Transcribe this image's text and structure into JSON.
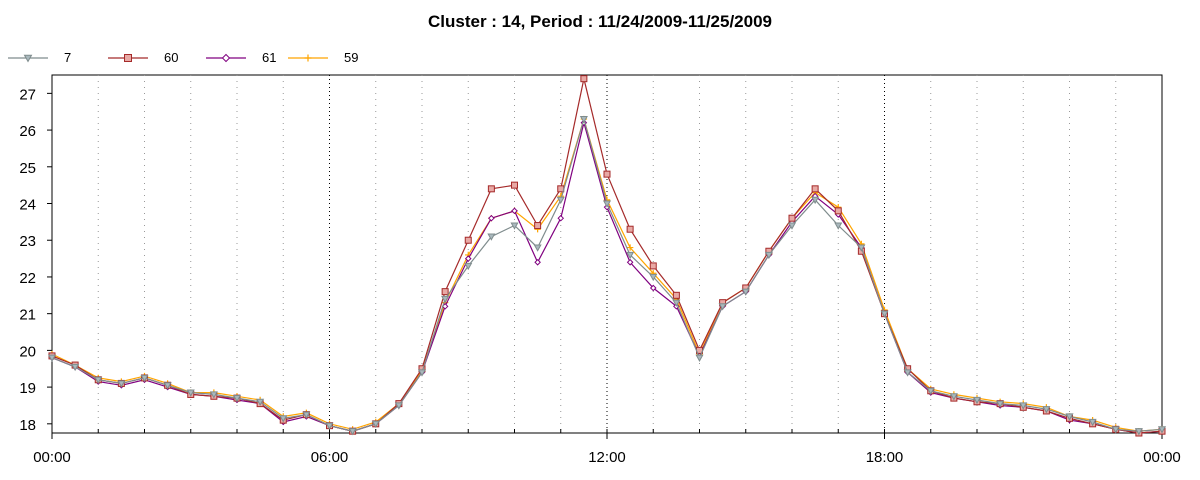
{
  "chart_data": {
    "type": "line",
    "title": "Cluster : 14, Period : 11/24/2009-11/25/2009",
    "xlabel": "",
    "ylabel": "",
    "x_ticks_hours": [
      0,
      6,
      12,
      18,
      24
    ],
    "x_tick_labels": [
      "00:00",
      "06:00",
      "12:00",
      "18:00",
      "00:00"
    ],
    "xlim_hours": [
      0,
      24
    ],
    "y_ticks": [
      18,
      19,
      20,
      21,
      22,
      23,
      24,
      25,
      26,
      27
    ],
    "y_tick_labels": [
      "18",
      "19",
      "20",
      "21",
      "22",
      "23",
      "24",
      "25",
      "26",
      "27"
    ],
    "ylim": [
      17.75,
      27.5
    ],
    "grid": "vertical dotted",
    "legend_position": "top-left",
    "series": [
      {
        "name": "7",
        "color": "#7f8c8d",
        "fill": "#a9b8bd",
        "marker": "triangle-down",
        "points": [
          [
            0,
            19.8
          ],
          [
            0.5,
            19.55
          ],
          [
            1,
            19.2
          ],
          [
            1.5,
            19.1
          ],
          [
            2,
            19.25
          ],
          [
            2.5,
            19.05
          ],
          [
            3,
            18.85
          ],
          [
            3.5,
            18.8
          ],
          [
            4,
            18.7
          ],
          [
            4.5,
            18.6
          ],
          [
            5,
            18.15
          ],
          [
            5.5,
            18.25
          ],
          [
            6,
            17.95
          ],
          [
            6.5,
            17.8
          ],
          [
            7,
            18.0
          ],
          [
            7.5,
            18.5
          ],
          [
            8,
            19.4
          ],
          [
            8.5,
            21.4
          ],
          [
            9,
            22.3
          ],
          [
            9.5,
            23.1
          ],
          [
            10,
            23.4
          ],
          [
            10.5,
            22.8
          ],
          [
            11,
            24.1
          ],
          [
            11.5,
            26.3
          ],
          [
            12,
            24.0
          ],
          [
            12.5,
            22.6
          ],
          [
            13,
            22.0
          ],
          [
            13.5,
            21.3
          ],
          [
            14,
            19.8
          ],
          [
            14.5,
            21.2
          ],
          [
            15,
            21.6
          ],
          [
            15.5,
            22.6
          ],
          [
            16,
            23.4
          ],
          [
            16.5,
            24.1
          ],
          [
            17,
            23.4
          ],
          [
            17.5,
            22.8
          ],
          [
            18,
            21.0
          ],
          [
            18.5,
            19.4
          ],
          [
            19,
            18.9
          ],
          [
            19.5,
            18.75
          ],
          [
            20,
            18.65
          ],
          [
            20.5,
            18.55
          ],
          [
            21,
            18.5
          ],
          [
            21.5,
            18.4
          ],
          [
            22,
            18.2
          ],
          [
            22.5,
            18.05
          ],
          [
            23,
            17.85
          ],
          [
            23.5,
            17.8
          ],
          [
            24,
            17.85
          ]
        ]
      },
      {
        "name": "60",
        "color": "#a52a2a",
        "fill": "#e8a9a5",
        "marker": "square",
        "points": [
          [
            0,
            19.85
          ],
          [
            0.5,
            19.6
          ],
          [
            1,
            19.2
          ],
          [
            1.5,
            19.1
          ],
          [
            2,
            19.25
          ],
          [
            2.5,
            19.05
          ],
          [
            3,
            18.8
          ],
          [
            3.5,
            18.75
          ],
          [
            4,
            18.7
          ],
          [
            4.5,
            18.55
          ],
          [
            5,
            18.1
          ],
          [
            5.5,
            18.25
          ],
          [
            6,
            17.95
          ],
          [
            6.5,
            17.8
          ],
          [
            7,
            18.0
          ],
          [
            7.5,
            18.55
          ],
          [
            8,
            19.5
          ],
          [
            8.5,
            21.6
          ],
          [
            9,
            23.0
          ],
          [
            9.5,
            24.4
          ],
          [
            10,
            24.5
          ],
          [
            10.5,
            23.4
          ],
          [
            11,
            24.4
          ],
          [
            11.5,
            27.4
          ],
          [
            12,
            24.8
          ],
          [
            12.5,
            23.3
          ],
          [
            13,
            22.3
          ],
          [
            13.5,
            21.5
          ],
          [
            14,
            20.0
          ],
          [
            14.5,
            21.3
          ],
          [
            15,
            21.7
          ],
          [
            15.5,
            22.7
          ],
          [
            16,
            23.6
          ],
          [
            16.5,
            24.4
          ],
          [
            17,
            23.8
          ],
          [
            17.5,
            22.7
          ],
          [
            18,
            21.0
          ],
          [
            18.5,
            19.5
          ],
          [
            19,
            18.9
          ],
          [
            19.5,
            18.7
          ],
          [
            20,
            18.6
          ],
          [
            20.5,
            18.55
          ],
          [
            21,
            18.45
          ],
          [
            21.5,
            18.35
          ],
          [
            22,
            18.15
          ],
          [
            22.5,
            18.0
          ],
          [
            23,
            17.85
          ],
          [
            23.5,
            17.75
          ],
          [
            24,
            17.8
          ]
        ]
      },
      {
        "name": "61",
        "color": "#800080",
        "fill": "#ffffff",
        "marker": "diamond",
        "points": [
          [
            0,
            19.8
          ],
          [
            0.5,
            19.55
          ],
          [
            1,
            19.15
          ],
          [
            1.5,
            19.05
          ],
          [
            2,
            19.2
          ],
          [
            2.5,
            19.0
          ],
          [
            3,
            18.8
          ],
          [
            3.5,
            18.75
          ],
          [
            4,
            18.65
          ],
          [
            4.5,
            18.55
          ],
          [
            5,
            18.05
          ],
          [
            5.5,
            18.2
          ],
          [
            6,
            17.95
          ],
          [
            6.5,
            17.8
          ],
          [
            7,
            18.0
          ],
          [
            7.5,
            18.5
          ],
          [
            8,
            19.4
          ],
          [
            8.5,
            21.2
          ],
          [
            9,
            22.5
          ],
          [
            9.5,
            23.6
          ],
          [
            10,
            23.8
          ],
          [
            10.5,
            22.4
          ],
          [
            11,
            23.6
          ],
          [
            11.5,
            26.2
          ],
          [
            12,
            23.9
          ],
          [
            12.5,
            22.4
          ],
          [
            13,
            21.7
          ],
          [
            13.5,
            21.2
          ],
          [
            14,
            19.85
          ],
          [
            14.5,
            21.2
          ],
          [
            15,
            21.6
          ],
          [
            15.5,
            22.6
          ],
          [
            16,
            23.5
          ],
          [
            16.5,
            24.2
          ],
          [
            17,
            23.7
          ],
          [
            17.5,
            22.8
          ],
          [
            18,
            21.0
          ],
          [
            18.5,
            19.4
          ],
          [
            19,
            18.85
          ],
          [
            19.5,
            18.7
          ],
          [
            20,
            18.6
          ],
          [
            20.5,
            18.5
          ],
          [
            21,
            18.45
          ],
          [
            21.5,
            18.35
          ],
          [
            22,
            18.1
          ],
          [
            22.5,
            18.0
          ],
          [
            23,
            17.85
          ],
          [
            23.5,
            17.75
          ],
          [
            24,
            17.8
          ]
        ]
      },
      {
        "name": "59",
        "color": "#ffa500",
        "fill": "#ffa500",
        "marker": "plus",
        "points": [
          [
            0,
            19.9
          ],
          [
            0.5,
            19.6
          ],
          [
            1,
            19.25
          ],
          [
            1.5,
            19.15
          ],
          [
            2,
            19.3
          ],
          [
            2.5,
            19.1
          ],
          [
            3,
            18.85
          ],
          [
            3.5,
            18.85
          ],
          [
            4,
            18.75
          ],
          [
            4.5,
            18.65
          ],
          [
            5,
            18.2
          ],
          [
            5.5,
            18.3
          ],
          [
            6,
            18.0
          ],
          [
            6.5,
            17.85
          ],
          [
            7,
            18.05
          ],
          [
            7.5,
            18.55
          ],
          [
            8,
            19.45
          ],
          [
            8.5,
            21.3
          ],
          [
            9,
            22.6
          ],
          [
            9.5,
            23.6
          ],
          [
            10,
            23.8
          ],
          [
            10.5,
            23.3
          ],
          [
            11,
            24.2
          ],
          [
            11.5,
            26.3
          ],
          [
            12,
            24.1
          ],
          [
            12.5,
            22.8
          ],
          [
            13,
            22.1
          ],
          [
            13.5,
            21.4
          ],
          [
            14,
            19.9
          ],
          [
            14.5,
            21.3
          ],
          [
            15,
            21.7
          ],
          [
            15.5,
            22.7
          ],
          [
            16,
            23.6
          ],
          [
            16.5,
            24.3
          ],
          [
            17,
            23.9
          ],
          [
            17.5,
            22.9
          ],
          [
            18,
            21.1
          ],
          [
            18.5,
            19.5
          ],
          [
            19,
            18.95
          ],
          [
            19.5,
            18.8
          ],
          [
            20,
            18.7
          ],
          [
            20.5,
            18.6
          ],
          [
            21,
            18.55
          ],
          [
            21.5,
            18.45
          ],
          [
            22,
            18.2
          ],
          [
            22.5,
            18.1
          ],
          [
            23,
            17.9
          ],
          [
            23.5,
            17.8
          ],
          [
            24,
            17.85
          ]
        ]
      }
    ]
  }
}
